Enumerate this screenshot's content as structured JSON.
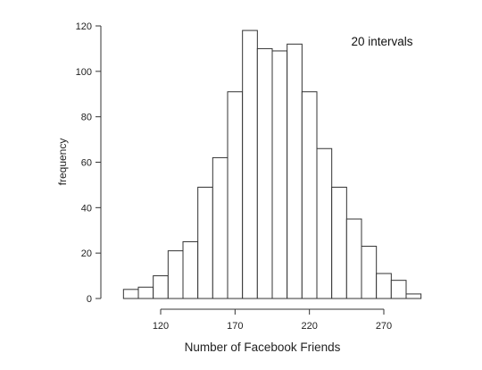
{
  "chart_data": {
    "type": "bar",
    "subtype": "histogram",
    "title": "",
    "annotation": "20 intervals",
    "xlabel": "Number of Facebook Friends",
    "ylabel": "frequency",
    "bin_edges": [
      95,
      105,
      115,
      125,
      135,
      145,
      155,
      165,
      175,
      185,
      195,
      205,
      215,
      225,
      235,
      245,
      255,
      265,
      275,
      285,
      295
    ],
    "values": [
      4,
      5,
      10,
      21,
      25,
      49,
      62,
      91,
      118,
      110,
      109,
      112,
      91,
      66,
      49,
      35,
      23,
      11,
      8,
      2
    ],
    "x_ticks": [
      120,
      170,
      220,
      270
    ],
    "y_ticks": [
      0,
      20,
      40,
      60,
      80,
      100,
      120
    ],
    "ylim": [
      0,
      120
    ],
    "grid": false,
    "legend": "none"
  }
}
